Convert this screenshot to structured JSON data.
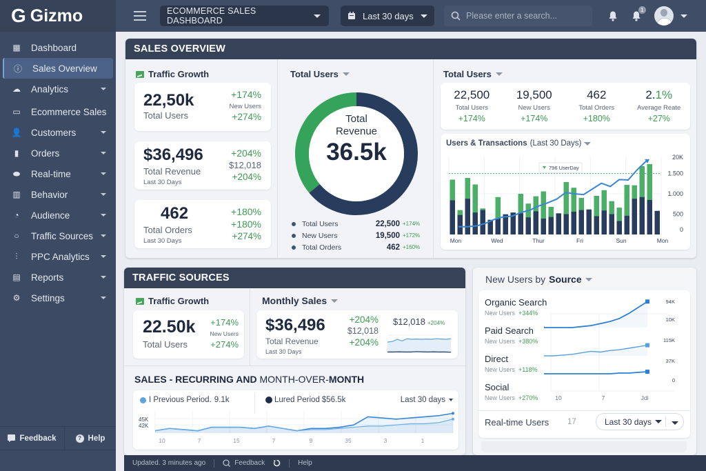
{
  "app": {
    "name": "Gizmo",
    "logo_letter": "G"
  },
  "topbar": {
    "dashboard_select": "ECOMMERCE SALES DASHBOARD",
    "date_range": "Last 30 days",
    "search_placeholder": "Please enter a search...",
    "notification_count": "1"
  },
  "sidebar": {
    "items": [
      {
        "label": "Dashboard",
        "icon": "dashboard-icon",
        "expandable": false
      },
      {
        "label": "Sales Overview",
        "icon": "info-icon",
        "expandable": false,
        "active": true
      },
      {
        "label": "Analytics",
        "icon": "cloud-icon",
        "expandable": true
      },
      {
        "label": "Ecommerce Sales",
        "icon": "monitor-icon",
        "expandable": false
      },
      {
        "label": "Customers",
        "icon": "add-user-icon",
        "expandable": true
      },
      {
        "label": "Orders",
        "icon": "bag-icon",
        "expandable": true
      },
      {
        "label": "Real-time",
        "icon": "realtime-icon",
        "expandable": true
      },
      {
        "label": "Behavior",
        "icon": "bar-chart-icon",
        "expandable": true
      },
      {
        "label": "Audience",
        "icon": "pie-icon",
        "expandable": true
      },
      {
        "label": "Traffic Sources",
        "icon": "circle-icon",
        "expandable": true
      },
      {
        "label": "PPC Analytics",
        "icon": "growth-icon",
        "expandable": true
      },
      {
        "label": "Reports",
        "icon": "document-icon",
        "expandable": true
      },
      {
        "label": "Settings",
        "icon": "gear-icon",
        "expandable": true
      }
    ],
    "footer": {
      "feedback": "Feedback",
      "help": "Help"
    }
  },
  "sales_overview": {
    "title": "SALES OVERVIEW",
    "traffic_growth": {
      "title": "Traffic Growth",
      "cards": [
        {
          "value": "22,50k",
          "label": "Total Users",
          "sub": "",
          "right": [
            "+174%",
            "New Users",
            "+274%"
          ]
        },
        {
          "value": "$36,496",
          "label": "Total Revenue",
          "sub": "Last 30 Days",
          "right": [
            "+204%",
            "$12,018",
            "+204%"
          ]
        },
        {
          "value": "462",
          "label": "Total Orders",
          "sub": "Last 30 Days",
          "right": [
            "+180%",
            "+180%",
            "+274%"
          ]
        }
      ]
    },
    "donut": {
      "title": "Total Users",
      "center_line1": "Total",
      "center_line2": "Revenue",
      "center_value": "36.5k",
      "legend": [
        {
          "label": "Total Users",
          "value": "22,500",
          "change": "+174%"
        },
        {
          "label": "New Users",
          "value": "19,500",
          "change": "+172%"
        },
        {
          "label": "Total Orders",
          "value": "462",
          "change": "+160%"
        }
      ]
    },
    "stats": {
      "title": "Total Users",
      "items": [
        {
          "value": "22,500",
          "label": "Total Users",
          "change": "+174%"
        },
        {
          "value": "19,500",
          "label": "New Users",
          "change": "+174%"
        },
        {
          "value": "462",
          "label": "Total Orders",
          "change": "+180%"
        },
        {
          "value_main": "2.",
          "value_accent": "1%",
          "label": "Average Reate",
          "change": "+27%"
        }
      ]
    },
    "users_transactions": {
      "title": "Users & Transactions",
      "period": "(Last 30 Days)",
      "annotation": "796 UserDay"
    }
  },
  "traffic_sources": {
    "title": "TRAFFIC SOURCES",
    "traffic_growth": {
      "title": "Traffic Growth",
      "value": "22.50k",
      "label": "Total Users",
      "right": [
        "+174%",
        "New Users",
        "+274%"
      ]
    },
    "monthly_sales": {
      "title": "Monthly Sales",
      "value": "$36,496",
      "label": "Total Revenue",
      "sub": "Last 30 Days",
      "mid": [
        "+204%",
        "$12,018",
        "+204%"
      ],
      "spark_value": "$12,018",
      "spark_change": "+204%"
    }
  },
  "recurring": {
    "title_a": "SALES - RECURRING",
    "title_b": " AND ",
    "title_c": "MONTH-OVER-",
    "title_d": "MONTH",
    "legend_prev": "I Previous Period.",
    "legend_prev_value": "9.1k",
    "legend_cur": "Lured Period",
    "legend_cur_value": "$56.5k",
    "range": "Last 30 days"
  },
  "new_users_source": {
    "title_a": "New Users by ",
    "title_b": "Source",
    "sources": [
      {
        "name": "Organic Search",
        "label": "New Users",
        "change": "+344%"
      },
      {
        "name": "Paid Search",
        "label": "New Users",
        "change": "+380%"
      },
      {
        "name": "Direct",
        "label": "New Users",
        "change": "+118%"
      },
      {
        "name": "Social",
        "label": "New Users",
        "change": "+270%"
      }
    ],
    "realtime_label": "Real-time Users",
    "realtime_value": "17",
    "range": "Last 30 days"
  },
  "footer": {
    "updated": "Updated. 3 minutes ago",
    "feedback": "Feedback",
    "help": "Help"
  },
  "colors": {
    "navy": "#283d5e",
    "green": "#4caf68",
    "blue": "#3a86d1",
    "header": "#354258"
  },
  "chart_data": [
    {
      "id": "donut",
      "type": "pie",
      "title": "Total Revenue",
      "series": [
        {
          "name": "Green segment",
          "value": 36,
          "color": "#36a35a"
        },
        {
          "name": "Navy segment",
          "value": 64,
          "color": "#283d5e"
        }
      ]
    },
    {
      "id": "users_transactions",
      "type": "bar",
      "title": "Users & Transactions (Last 30 Days)",
      "x_ticks": [
        "Mon",
        "Wed",
        "Thur",
        "Fri",
        "Sun",
        "Mon"
      ],
      "y_ticks": [
        "20K",
        "1.500",
        "1.000",
        "500",
        "0"
      ],
      "ylim": [
        0,
        1900
      ],
      "reference_line": 1500,
      "series": [
        {
          "name": "Users",
          "color": "#4caf68",
          "values": [
            1350,
            600,
            1390,
            1230,
            640,
            360,
            920,
            500,
            520,
            1000,
            760,
            940,
            1060,
            680,
            480,
            1290,
            1150,
            900,
            620,
            950,
            1090,
            820,
            660,
            1220,
            1210,
            1680,
            1730,
            580
          ]
        },
        {
          "name": "Transactions",
          "color": "#283d5e",
          "values": [
            840,
            480,
            880,
            540,
            600,
            360,
            390,
            490,
            540,
            520,
            420,
            570,
            390,
            430,
            520,
            500,
            560,
            600,
            610,
            450,
            590,
            500,
            330,
            460,
            880,
            920,
            850,
            580
          ]
        },
        {
          "name": "Trend",
          "type": "line",
          "color": "#3a86d1",
          "values": [
            190,
            190,
            210,
            270,
            370,
            430,
            450,
            540,
            600,
            700,
            780,
            870,
            1030,
            1000,
            980,
            1120,
            1260,
            1180,
            1350,
            1340,
            1590,
            1800
          ]
        }
      ]
    },
    {
      "id": "monthly_sparkline",
      "type": "line",
      "series": [
        {
          "name": "Revenue",
          "color": "#5aa0dc",
          "values": [
            40,
            42,
            50,
            44,
            52,
            50,
            51,
            50,
            51,
            50,
            52,
            51,
            50,
            52
          ]
        },
        {
          "name": "Baseline",
          "color": "#283d5e",
          "values": [
            12,
            12,
            13,
            12,
            12,
            14,
            13,
            12,
            13,
            12,
            12,
            11
          ]
        }
      ]
    },
    {
      "id": "recurring",
      "type": "area",
      "x_ticks": [
        "10",
        "7",
        "15",
        "7",
        "9",
        "35",
        "3",
        "1"
      ],
      "y_ticks": [
        "45K",
        "42K"
      ],
      "series": [
        {
          "name": "Current Period",
          "color": "#3a86d1",
          "values": [
            38,
            40,
            39,
            38,
            41,
            41,
            41,
            40,
            42,
            40,
            38,
            40,
            40,
            41,
            43,
            50,
            49,
            48,
            49,
            50,
            51,
            53
          ]
        },
        {
          "name": "Previous Period",
          "color": "#6aaee6",
          "values": [
            38,
            40,
            39,
            38,
            41,
            41,
            41,
            40,
            42,
            40,
            38,
            39,
            39,
            40,
            41,
            42,
            42,
            43,
            44,
            44,
            45,
            48
          ]
        }
      ]
    },
    {
      "id": "new_users_source",
      "type": "line",
      "x_ticks": [
        "10",
        "7",
        "Jdl"
      ],
      "y_ticks": [
        "94K",
        "10K",
        "115K",
        "37K",
        "0"
      ],
      "series": [
        {
          "name": "Organic Search",
          "values": [
            0,
            0,
            0,
            0,
            1,
            2,
            4,
            6,
            9,
            14,
            20,
            26
          ]
        },
        {
          "name": "Paid Search",
          "values": [
            0,
            0,
            1,
            2,
            4,
            6,
            5,
            7,
            8,
            10,
            12,
            14
          ]
        },
        {
          "name": "Direct",
          "values": [
            0,
            0,
            0,
            0,
            0,
            0,
            0,
            0,
            1,
            1,
            2,
            3
          ]
        }
      ]
    }
  ]
}
